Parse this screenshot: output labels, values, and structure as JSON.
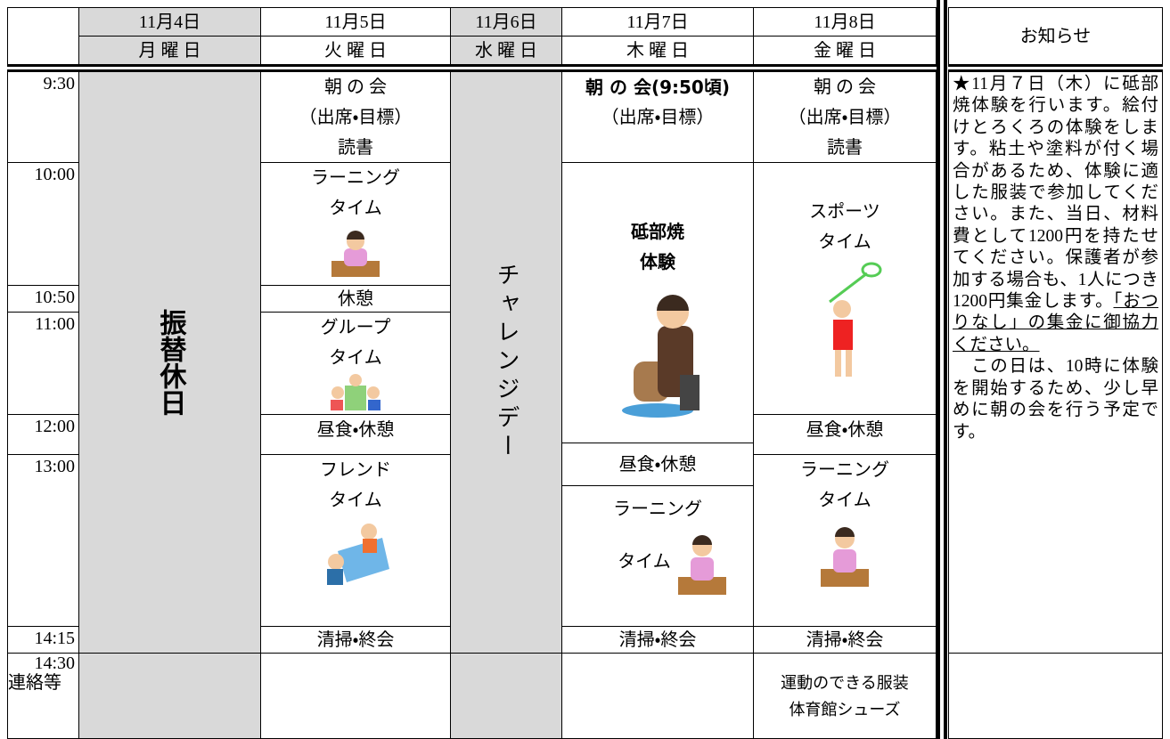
{
  "header": {
    "dates": [
      "11月4日",
      "11月5日",
      "11月6日",
      "11月7日",
      "11月8日"
    ],
    "days": [
      "月 曜 日",
      "火 曜 日",
      "水 曜 日",
      "木 曜 日",
      "金 曜 日"
    ],
    "notice_title": "お知らせ"
  },
  "times": [
    "9:30",
    "10:00",
    "10:50",
    "11:00",
    "12:00",
    "13:00",
    "14:15",
    "14:30",
    "連絡等"
  ],
  "monday": {
    "label": "振替休日"
  },
  "tuesday": {
    "morning": [
      "朝 の 会",
      "（出席・目標）",
      "読書"
    ],
    "learning": [
      "ラーニング",
      "タイム"
    ],
    "break": "休憩",
    "group": [
      "グループ",
      "タイム"
    ],
    "lunch": "昼食・休憩",
    "friend": [
      "フレンド",
      "タイム"
    ],
    "cleaning": "清掃・終会"
  },
  "wednesday": {
    "label": "チャレンジデー"
  },
  "thursday": {
    "morning": [
      "朝 の 会(9:50頃)",
      "（出席・目標）"
    ],
    "pottery": [
      "砥部焼",
      "体験"
    ],
    "lunch": "昼食・休憩",
    "learning": [
      "ラーニング",
      "タイム"
    ],
    "cleaning": "清掃・終会"
  },
  "friday": {
    "morning": [
      "朝 の 会",
      "（出席・目標）",
      "読書"
    ],
    "sports": [
      "スポーツ",
      "タイム"
    ],
    "lunch": "昼食・休憩",
    "learning": [
      "ラーニング",
      "タイム"
    ],
    "cleaning": "清掃・終会",
    "notes": [
      "運動のできる服装",
      "体育館シューズ"
    ]
  },
  "notice": {
    "paragraphs": [
      "★11月７日（木）に砥部焼体験を行います。絵付けとろくろの体験をします。粘土や塗料が付く場合があるため、体験に適した服装で参加してください。また、当日、材料費として1200円を持たせてください。保護者が参加する場合も、1人につき1200円集金します。",
      "「おつりなし」の集金に御協力ください。",
      "　この日は、10時に体験を開始するため、少し早めに朝の会を行う予定です。"
    ]
  }
}
